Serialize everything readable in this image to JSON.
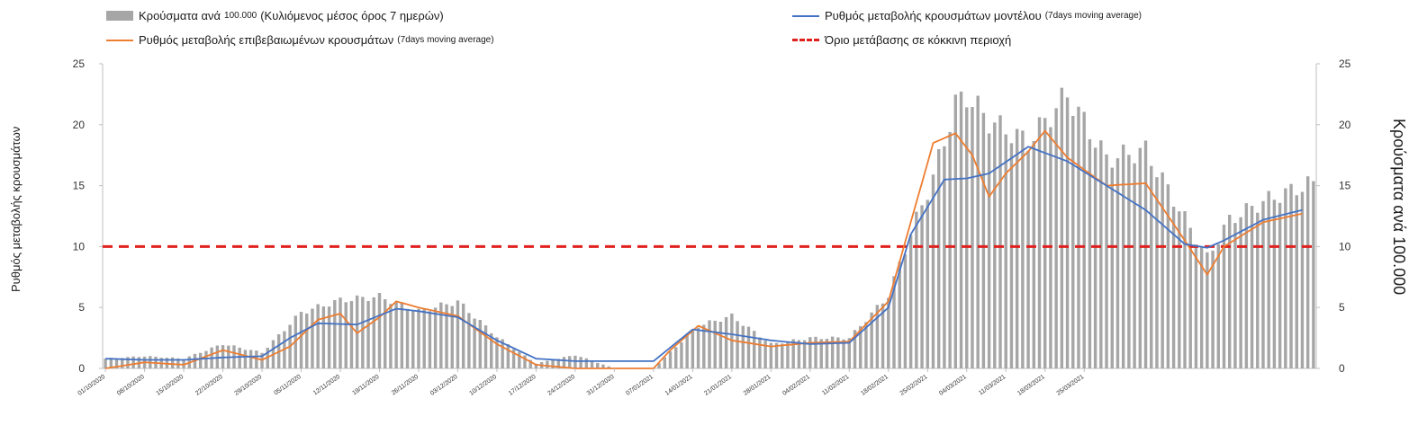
{
  "legend": {
    "bars": {
      "label": "Κρούσματα ανά",
      "small1": "100.000",
      "label2": "(Κυλιόμενος μέσος όρος 7 ημερών)"
    },
    "model": {
      "label": "Ρυθμός μεταβολής κρουσμάτων μοντέλου",
      "small": "(7days moving average)"
    },
    "confirmed": {
      "label": "Ρυθμός μεταβολής επιβεβαιωμένων κρουσμάτων",
      "small": "(7days moving average)"
    },
    "threshold": {
      "label": "Όριο μετάβασης σε κόκκινη περιοχή"
    }
  },
  "colors": {
    "bars": "#a6a6a6",
    "model": "#4472c4",
    "confirmed": "#ed7d31",
    "threshold": "#e0201e",
    "axis": "#bfbfbf"
  },
  "chart_data": {
    "type": "bar+line",
    "ylabel_left": "Ρυθμός μεταβολής κρουσμάτων",
    "ylabel_right": "Κρούσματα ανά 100.000",
    "ylim": [
      0,
      25
    ],
    "yticks": [
      0,
      5,
      10,
      15,
      20,
      25
    ],
    "threshold": 10,
    "x_tick_labels": [
      "01/10/2020",
      "08/10/2020",
      "15/10/2020",
      "22/10/2020",
      "29/10/2020",
      "05/11/2020",
      "12/11/2020",
      "19/11/2020",
      "26/11/2020",
      "03/12/2020",
      "10/12/2020",
      "17/12/2020",
      "24/12/2020",
      "31/12/2020",
      "07/01/2021",
      "14/01/2021",
      "21/01/2021",
      "28/01/2021",
      "04/02/2021",
      "11/02/2021",
      "18/02/2021",
      "25/02/2021",
      "04/03/2021",
      "11/03/2021",
      "18/03/2021",
      "25/03/2021"
    ],
    "bar_anchors": [
      [
        0,
        0.8
      ],
      [
        7,
        1.0
      ],
      [
        14,
        0.8
      ],
      [
        21,
        2.0
      ],
      [
        28,
        1.3
      ],
      [
        35,
        4.6
      ],
      [
        42,
        5.6
      ],
      [
        49,
        5.9
      ],
      [
        56,
        4.7
      ],
      [
        63,
        5.5
      ],
      [
        70,
        2.6
      ],
      [
        77,
        0.4
      ],
      [
        84,
        1.1
      ],
      [
        91,
        0.0
      ],
      [
        98,
        0.0
      ],
      [
        102,
        1.8
      ],
      [
        106,
        3.5
      ],
      [
        112,
        4.3
      ],
      [
        119,
        2.0
      ],
      [
        126,
        2.5
      ],
      [
        133,
        2.5
      ],
      [
        140,
        6.0
      ],
      [
        144,
        11.1
      ],
      [
        148,
        15.7
      ],
      [
        152,
        21.7
      ],
      [
        154,
        22.4
      ],
      [
        158,
        20.3
      ],
      [
        165,
        18.6
      ],
      [
        172,
        22.5
      ],
      [
        179,
        17.2
      ],
      [
        186,
        17.9
      ],
      [
        190,
        14.7
      ],
      [
        194,
        11.5
      ],
      [
        197,
        9.1
      ],
      [
        201,
        12.2
      ],
      [
        207,
        13.7
      ],
      [
        215,
        15.1
      ]
    ],
    "model_anchors": [
      [
        0,
        0.8
      ],
      [
        7,
        0.7
      ],
      [
        14,
        0.7
      ],
      [
        21,
        0.9
      ],
      [
        28,
        1.0
      ],
      [
        33,
        2.5
      ],
      [
        38,
        3.7
      ],
      [
        45,
        3.6
      ],
      [
        52,
        4.9
      ],
      [
        56,
        4.7
      ],
      [
        63,
        4.2
      ],
      [
        70,
        2.3
      ],
      [
        77,
        0.8
      ],
      [
        84,
        0.6
      ],
      [
        91,
        0.6
      ],
      [
        98,
        0.6
      ],
      [
        105,
        3.2
      ],
      [
        112,
        2.8
      ],
      [
        119,
        2.3
      ],
      [
        126,
        2.0
      ],
      [
        133,
        2.1
      ],
      [
        140,
        5.0
      ],
      [
        144,
        11.0
      ],
      [
        150,
        15.5
      ],
      [
        154,
        15.6
      ],
      [
        158,
        16.0
      ],
      [
        165,
        18.2
      ],
      [
        172,
        17.0
      ],
      [
        179,
        15.0
      ],
      [
        186,
        13.0
      ],
      [
        193,
        10.2
      ],
      [
        197,
        9.9
      ],
      [
        200,
        10.5
      ],
      [
        207,
        12.2
      ],
      [
        214,
        13.0
      ]
    ],
    "confirmed_anchors": [
      [
        0,
        0.0
      ],
      [
        7,
        0.5
      ],
      [
        14,
        0.3
      ],
      [
        21,
        1.5
      ],
      [
        28,
        0.7
      ],
      [
        33,
        1.8
      ],
      [
        38,
        4.0
      ],
      [
        42,
        4.5
      ],
      [
        45,
        2.9
      ],
      [
        49,
        4.2
      ],
      [
        52,
        5.5
      ],
      [
        56,
        5.0
      ],
      [
        63,
        4.3
      ],
      [
        70,
        2.0
      ],
      [
        77,
        0.3
      ],
      [
        84,
        0.0
      ],
      [
        91,
        0.0
      ],
      [
        98,
        0.0
      ],
      [
        101,
        1.5
      ],
      [
        106,
        3.5
      ],
      [
        112,
        2.3
      ],
      [
        119,
        1.8
      ],
      [
        126,
        2.1
      ],
      [
        133,
        2.2
      ],
      [
        140,
        5.5
      ],
      [
        144,
        12.0
      ],
      [
        148,
        18.5
      ],
      [
        152,
        19.3
      ],
      [
        155,
        17.5
      ],
      [
        158,
        14.1
      ],
      [
        161,
        16.0
      ],
      [
        165,
        17.8
      ],
      [
        168,
        19.5
      ],
      [
        172,
        17.3
      ],
      [
        179,
        15.0
      ],
      [
        186,
        15.2
      ],
      [
        193,
        10.5
      ],
      [
        197,
        7.7
      ],
      [
        200,
        10.0
      ],
      [
        207,
        12.0
      ],
      [
        214,
        12.7
      ]
    ]
  }
}
